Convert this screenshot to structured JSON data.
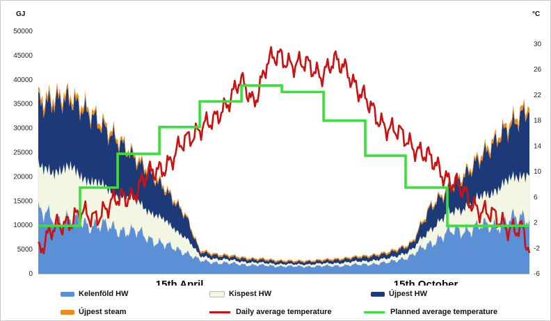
{
  "chart_data": {
    "type": "area",
    "y_left_label": "GJ",
    "y_right_label": "°C",
    "ylim_left": [
      0,
      50000
    ],
    "ylim_right": [
      -6,
      32
    ],
    "y_left_ticks": [
      "0",
      "5000",
      "10000",
      "15000",
      "20000",
      "25000",
      "30000",
      "35000",
      "40000",
      "45000",
      "50000"
    ],
    "y_right_ticks": [
      "-6",
      "-2",
      "2",
      "6",
      "10",
      "14",
      "18",
      "22",
      "26",
      "30"
    ],
    "x_labels": [
      {
        "label": "15th April",
        "day": 105
      },
      {
        "label": "15th October",
        "day": 288
      }
    ],
    "days": 365,
    "series": [
      {
        "name": "Kelenföld HW",
        "kind": "area",
        "color": "#5b8fd6",
        "keyframes": [
          [
            0,
            12500
          ],
          [
            25,
            11000
          ],
          [
            50,
            9800
          ],
          [
            75,
            8400
          ],
          [
            95,
            5800
          ],
          [
            110,
            4500
          ],
          [
            120,
            2700
          ],
          [
            135,
            2300
          ],
          [
            160,
            1800
          ],
          [
            190,
            1500
          ],
          [
            215,
            1600
          ],
          [
            240,
            1900
          ],
          [
            260,
            2300
          ],
          [
            278,
            3800
          ],
          [
            292,
            6500
          ],
          [
            305,
            8500
          ],
          [
            320,
            9300
          ],
          [
            345,
            10500
          ],
          [
            365,
            12200
          ]
        ]
      },
      {
        "name": "Kispest HW",
        "kind": "area",
        "color": "#f4f6e4",
        "keyframes": [
          [
            0,
            9000
          ],
          [
            25,
            10500
          ],
          [
            50,
            7800
          ],
          [
            75,
            6200
          ],
          [
            95,
            4800
          ],
          [
            110,
            3000
          ],
          [
            120,
            900
          ],
          [
            135,
            700
          ],
          [
            160,
            500
          ],
          [
            190,
            400
          ],
          [
            215,
            500
          ],
          [
            240,
            650
          ],
          [
            260,
            800
          ],
          [
            278,
            1100
          ],
          [
            292,
            3000
          ],
          [
            305,
            3800
          ],
          [
            320,
            5000
          ],
          [
            345,
            7800
          ],
          [
            365,
            9200
          ]
        ]
      },
      {
        "name": "Újpest HW",
        "kind": "area",
        "color": "#1c3a78",
        "keyframes": [
          [
            0,
            13500
          ],
          [
            25,
            14500
          ],
          [
            50,
            12200
          ],
          [
            75,
            8200
          ],
          [
            95,
            6500
          ],
          [
            110,
            4200
          ],
          [
            120,
            900
          ],
          [
            135,
            700
          ],
          [
            160,
            600
          ],
          [
            190,
            500
          ],
          [
            215,
            600
          ],
          [
            240,
            800
          ],
          [
            260,
            1000
          ],
          [
            278,
            1300
          ],
          [
            292,
            4500
          ],
          [
            305,
            4800
          ],
          [
            320,
            6800
          ],
          [
            345,
            10500
          ],
          [
            365,
            12800
          ]
        ]
      },
      {
        "name": "Újpest steam",
        "kind": "area",
        "color": "#f08a1a",
        "keyframes": [
          [
            0,
            1200
          ],
          [
            50,
            900
          ],
          [
            100,
            500
          ],
          [
            120,
            350
          ],
          [
            200,
            250
          ],
          [
            278,
            350
          ],
          [
            320,
            700
          ],
          [
            365,
            1100
          ]
        ]
      },
      {
        "name": "Daily average temperature",
        "kind": "line",
        "color": "#cc1111",
        "keyframes": [
          [
            0,
            -2
          ],
          [
            10,
            0.5
          ],
          [
            20,
            2
          ],
          [
            30,
            3.5
          ],
          [
            40,
            2.5
          ],
          [
            50,
            4.5
          ],
          [
            60,
            5.5
          ],
          [
            70,
            6.5
          ],
          [
            80,
            9
          ],
          [
            90,
            10.5
          ],
          [
            100,
            12
          ],
          [
            110,
            15
          ],
          [
            120,
            17
          ],
          [
            130,
            17.5
          ],
          [
            140,
            21
          ],
          [
            150,
            24
          ],
          [
            160,
            21
          ],
          [
            170,
            27
          ],
          [
            180,
            28
          ],
          [
            190,
            27
          ],
          [
            200,
            26.5
          ],
          [
            210,
            25.5
          ],
          [
            220,
            27
          ],
          [
            230,
            26
          ],
          [
            240,
            22
          ],
          [
            250,
            19
          ],
          [
            260,
            17
          ],
          [
            270,
            15.5
          ],
          [
            280,
            14
          ],
          [
            290,
            12
          ],
          [
            300,
            10
          ],
          [
            310,
            8
          ],
          [
            320,
            5.5
          ],
          [
            330,
            4
          ],
          [
            340,
            2.5
          ],
          [
            350,
            1.5
          ],
          [
            360,
            0.5
          ],
          [
            365,
            -3
          ]
        ]
      },
      {
        "name": "Planned average temperature",
        "kind": "step",
        "color": "#3ae03a",
        "steps": [
          [
            0,
            31,
            1.5
          ],
          [
            31,
            59,
            7.5
          ],
          [
            59,
            90,
            12.8
          ],
          [
            90,
            120,
            17
          ],
          [
            120,
            151,
            21
          ],
          [
            151,
            181,
            23.5
          ],
          [
            181,
            212,
            22.5
          ],
          [
            212,
            243,
            18
          ],
          [
            243,
            273,
            12.5
          ],
          [
            273,
            304,
            7.5
          ],
          [
            304,
            365,
            1.5
          ]
        ]
      }
    ]
  }
}
